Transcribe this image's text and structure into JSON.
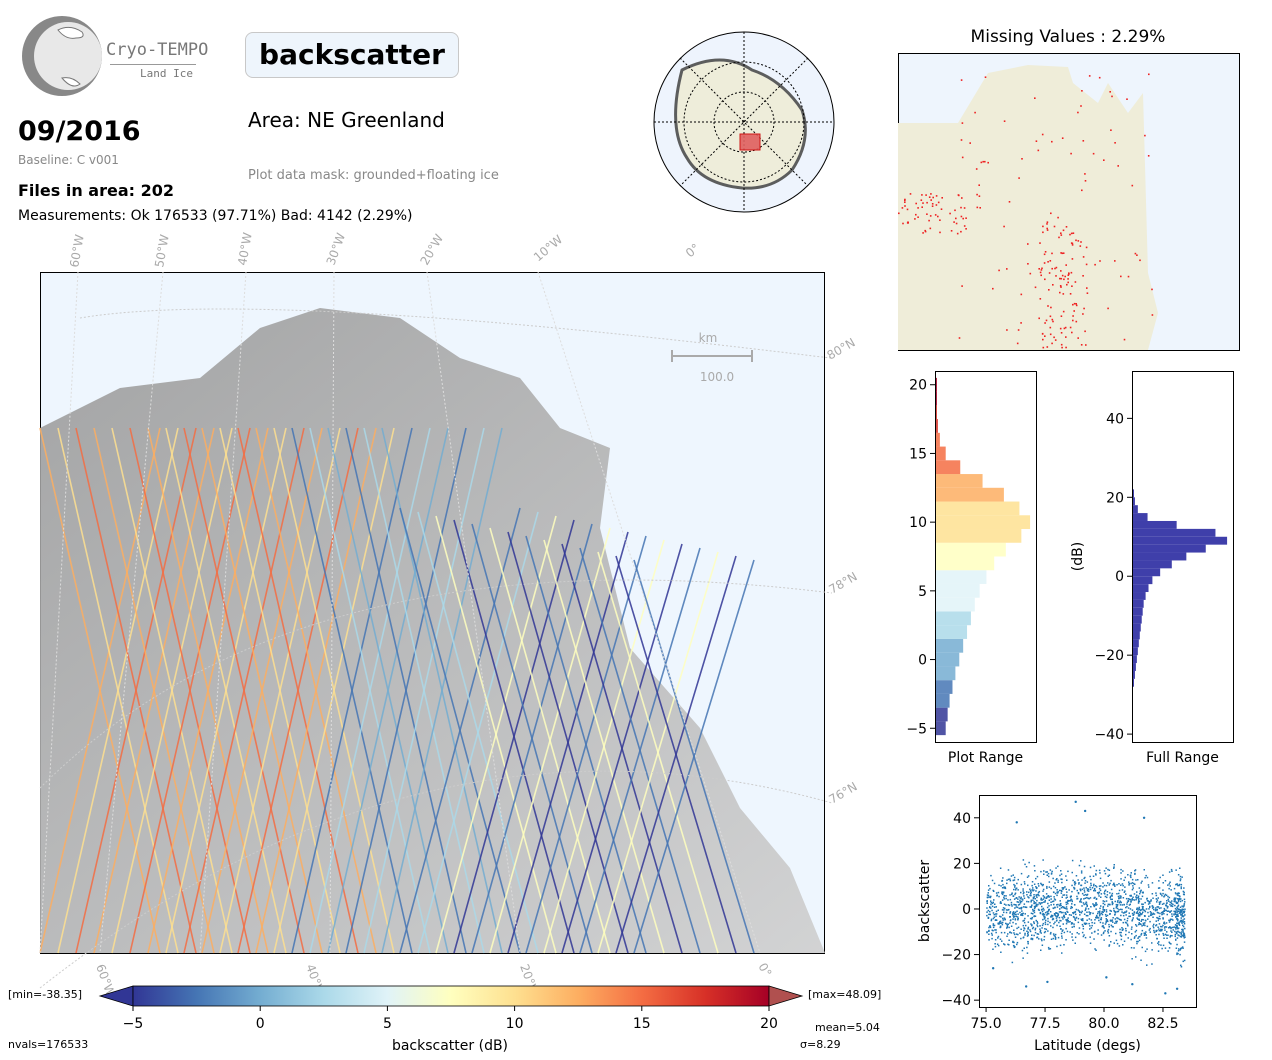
{
  "logo": {
    "name": "Cryo-TEMPO",
    "subtitle": "Land Ice"
  },
  "variable": "backscatter",
  "date": "09/2016",
  "baseline": "Baseline: C v001",
  "files_in_area": "Files in area: 202",
  "measurements": "Measurements: Ok 176533 (97.71%) Bad: 4142 (2.29%)",
  "area": "Area: NE Greenland",
  "mask": "Plot data mask: grounded+floating ice",
  "missing_title": "Missing Values : 2.29%",
  "map": {
    "lon_labels": [
      "60°W",
      "50°W",
      "40°W",
      "30°W",
      "20°W",
      "10°W",
      "0°"
    ],
    "lat_labels": [
      "80°N",
      "78°N",
      "76°N"
    ],
    "bottom_lon_labels": [
      "60°W",
      "40°W",
      "20°W",
      "0°"
    ],
    "scale_unit": "km",
    "scale_value": "100.0"
  },
  "colorbar": {
    "ticks": [
      "−5",
      "0",
      "5",
      "10",
      "15",
      "20"
    ],
    "label": "backscatter (dB)",
    "min_text": "[min=-38.35]",
    "max_text": "[max=48.09]",
    "nvals": "nvals=176533",
    "mean": "mean=5.04",
    "sigma": "σ=8.29",
    "colors": [
      "#313695",
      "#4575b4",
      "#74add1",
      "#abd9e9",
      "#e0f3f8",
      "#ffffbf",
      "#fee090",
      "#fdae61",
      "#f46d43",
      "#d73027",
      "#a50026"
    ]
  },
  "chart_data": [
    {
      "type": "bar",
      "orientation": "horizontal",
      "xlabel": "Plot Range",
      "ylabel": "",
      "ylim": [
        -6,
        21
      ],
      "yticks": [
        "−5",
        "0",
        "5",
        "10",
        "15",
        "20"
      ],
      "bins": [
        [
          -5,
          0.1
        ],
        [
          -4,
          0.12
        ],
        [
          -3,
          0.14
        ],
        [
          -2,
          0.17
        ],
        [
          -1,
          0.2
        ],
        [
          0,
          0.24
        ],
        [
          1,
          0.28
        ],
        [
          2,
          0.32
        ],
        [
          3,
          0.36
        ],
        [
          4,
          0.4
        ],
        [
          5,
          0.45
        ],
        [
          6,
          0.52
        ],
        [
          7,
          0.6
        ],
        [
          8,
          0.72
        ],
        [
          9,
          0.88
        ],
        [
          10,
          0.97
        ],
        [
          11,
          0.86
        ],
        [
          12,
          0.7
        ],
        [
          13,
          0.48
        ],
        [
          14,
          0.25
        ],
        [
          15,
          0.1
        ],
        [
          16,
          0.04
        ],
        [
          17,
          0.02
        ],
        [
          18,
          0.01
        ],
        [
          19,
          0.005
        ],
        [
          20,
          0.002
        ]
      ]
    },
    {
      "type": "bar",
      "orientation": "horizontal",
      "xlabel": "Full Range",
      "ylabel": "(dB)",
      "ylim": [
        -42,
        52
      ],
      "yticks": [
        "−40",
        "−20",
        "0",
        "20",
        "40"
      ],
      "color": "#3f3faa",
      "bins": [
        [
          -27,
          0.01
        ],
        [
          -25,
          0.02
        ],
        [
          -23,
          0.03
        ],
        [
          -21,
          0.04
        ],
        [
          -19,
          0.05
        ],
        [
          -17,
          0.06
        ],
        [
          -15,
          0.07
        ],
        [
          -13,
          0.08
        ],
        [
          -11,
          0.09
        ],
        [
          -9,
          0.1
        ],
        [
          -7,
          0.11
        ],
        [
          -5,
          0.13
        ],
        [
          -3,
          0.16
        ],
        [
          -1,
          0.2
        ],
        [
          1,
          0.28
        ],
        [
          3,
          0.4
        ],
        [
          5,
          0.55
        ],
        [
          7,
          0.75
        ],
        [
          9,
          0.97
        ],
        [
          11,
          0.85
        ],
        [
          13,
          0.45
        ],
        [
          15,
          0.15
        ],
        [
          17,
          0.05
        ],
        [
          19,
          0.02
        ],
        [
          21,
          0.01
        ]
      ]
    },
    {
      "type": "scatter",
      "xlabel": "Latitude (degs)",
      "ylabel": "backscatter",
      "xlim": [
        74.7,
        83.9
      ],
      "ylim": [
        -43,
        50
      ],
      "xticks": [
        "75.0",
        "77.5",
        "80.0",
        "82.5"
      ],
      "yticks": [
        "−40",
        "−20",
        "0",
        "20",
        "40"
      ],
      "color": "#1f77b4",
      "bands": [
        [
          75.0,
          -22,
          22
        ],
        [
          76.0,
          -26,
          24
        ],
        [
          77.0,
          -24,
          26
        ],
        [
          78.0,
          -22,
          25
        ],
        [
          79.0,
          -20,
          24
        ],
        [
          80.0,
          -22,
          25
        ],
        [
          81.0,
          -24,
          25
        ],
        [
          82.0,
          -26,
          24
        ],
        [
          83.0,
          -28,
          22
        ],
        [
          83.4,
          -28,
          20
        ]
      ],
      "extremes": [
        [
          75.3,
          -26
        ],
        [
          76.3,
          38
        ],
        [
          76.7,
          -34
        ],
        [
          77.6,
          -32
        ],
        [
          78.8,
          47
        ],
        [
          79.2,
          43
        ],
        [
          80.1,
          -30
        ],
        [
          81.2,
          -33
        ],
        [
          81.7,
          40
        ],
        [
          82.6,
          -37
        ],
        [
          83.1,
          -35
        ]
      ]
    }
  ]
}
